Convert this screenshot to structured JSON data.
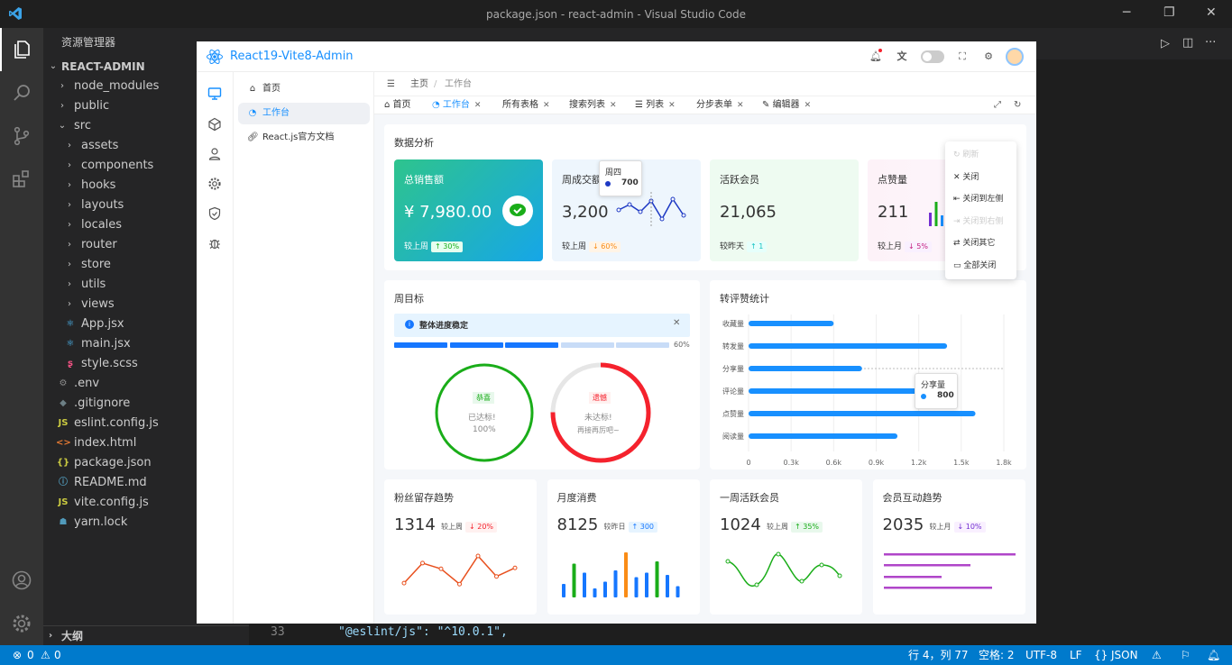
{
  "vscode": {
    "window_title": "package.json - react-admin - Visual Studio Code",
    "explorer_title": "资源管理器",
    "project": "REACT-ADMIN",
    "outline": "大纲",
    "code_line_no": "33",
    "code_text": "\"@eslint/js\": \"^10.0.1\",",
    "tree": [
      {
        "name": "node_modules",
        "type": "folder",
        "depth": 1
      },
      {
        "name": "public",
        "type": "folder",
        "depth": 1
      },
      {
        "name": "src",
        "type": "folder-open",
        "depth": 1
      },
      {
        "name": "assets",
        "type": "folder",
        "depth": 2
      },
      {
        "name": "components",
        "type": "folder",
        "depth": 2
      },
      {
        "name": "hooks",
        "type": "folder",
        "depth": 2
      },
      {
        "name": "layouts",
        "type": "folder",
        "depth": 2
      },
      {
        "name": "locales",
        "type": "folder",
        "depth": 2
      },
      {
        "name": "router",
        "type": "folder",
        "depth": 2
      },
      {
        "name": "store",
        "type": "folder",
        "depth": 2
      },
      {
        "name": "utils",
        "type": "folder",
        "depth": 2
      },
      {
        "name": "views",
        "type": "folder",
        "depth": 2
      },
      {
        "name": "App.jsx",
        "type": "react",
        "depth": 2
      },
      {
        "name": "main.jsx",
        "type": "react",
        "depth": 2
      },
      {
        "name": "style.scss",
        "type": "scss",
        "depth": 2
      },
      {
        "name": ".env",
        "type": "env",
        "depth": 1
      },
      {
        "name": ".gitignore",
        "type": "git",
        "depth": 1
      },
      {
        "name": "eslint.config.js",
        "type": "js",
        "depth": 1
      },
      {
        "name": "index.html",
        "type": "html",
        "depth": 1
      },
      {
        "name": "package.json",
        "type": "json",
        "depth": 1
      },
      {
        "name": "README.md",
        "type": "info",
        "depth": 1
      },
      {
        "name": "vite.config.js",
        "type": "js",
        "depth": 1
      },
      {
        "name": "yarn.lock",
        "type": "yarn",
        "depth": 1
      }
    ],
    "status": {
      "errors": "0",
      "warnings": "0",
      "position": "行 4，列 77",
      "spaces": "空格: 2",
      "encoding": "UTF-8",
      "eol": "LF",
      "language": "JSON"
    }
  },
  "app": {
    "brand": "React19-Vite8-Admin",
    "menu": [
      {
        "label": "首页",
        "icon": "home-icon"
      },
      {
        "label": "工作台",
        "icon": "dashboard-icon",
        "active": true
      },
      {
        "label": "React.js官方文档",
        "icon": "link-icon"
      }
    ],
    "breadcrumb": [
      "主页",
      "工作台"
    ],
    "tabs": [
      {
        "label": "首页",
        "closable": false
      },
      {
        "label": "工作台",
        "closable": true,
        "active": true
      },
      {
        "label": "所有表格",
        "closable": true
      },
      {
        "label": "搜索列表",
        "closable": true
      },
      {
        "label": "列表",
        "closable": true
      },
      {
        "label": "分步表单",
        "closable": true
      },
      {
        "label": "编辑器",
        "closable": true
      }
    ],
    "tab_menu": [
      "刷新",
      "关闭",
      "关闭到左侧",
      "关闭到右侧",
      "关闭其它",
      "全部关闭"
    ],
    "analysis": {
      "title": "数据分析",
      "cards": [
        {
          "label": "总销售额",
          "value": "¥ 7,980.00",
          "compare": "较上周",
          "trend": "↑ 30%"
        },
        {
          "label": "周成交额",
          "value": "3,200",
          "compare": "较上周",
          "trend": "↓ 60%"
        },
        {
          "label": "活跃会员",
          "value": "21,065",
          "compare": "较昨天",
          "trend": "↑ 1"
        },
        {
          "label": "点赞量",
          "value": "211",
          "compare": "较上月",
          "trend": "↓ 5%"
        }
      ],
      "tooltip": {
        "label": "周四",
        "value": "700"
      }
    },
    "weekly_goal": {
      "title": "周目标",
      "alert": "整体进度稳定",
      "progress_pct": "60%",
      "progress": 0.6,
      "ring1": {
        "tag": "恭喜",
        "line1": "已达标!",
        "line2": "100%"
      },
      "ring2": {
        "tag": "遗憾",
        "line1": "未达标!",
        "line2": "再接再厉吧~"
      }
    },
    "bottom": [
      {
        "title": "粉丝留存趋势",
        "value": "1314",
        "compare": "较上周",
        "trend": "↓ 20%"
      },
      {
        "title": "月度消费",
        "value": "8125",
        "compare": "较昨日",
        "trend": "↑ 300"
      },
      {
        "title": "一周活跃会员",
        "value": "1024",
        "compare": "较上周",
        "trend": "↑ 35%"
      },
      {
        "title": "会员互动趋势",
        "value": "2035",
        "compare": "较上月",
        "trend": "↓ 10%"
      }
    ]
  },
  "chart_data": [
    {
      "type": "bar",
      "title": "转评赞统计",
      "orientation": "horizontal",
      "categories": [
        "收藏量",
        "转发量",
        "分享量",
        "评论量",
        "点赞量",
        "阅读量"
      ],
      "values": [
        600,
        1400,
        800,
        1300,
        1600,
        1050
      ],
      "xlim": [
        0,
        1800
      ],
      "xticks": [
        "0",
        "0.3k",
        "0.6k",
        "0.9k",
        "1.2k",
        "1.5k",
        "1.8k"
      ],
      "tooltip": {
        "label": "分享量",
        "value": "800"
      }
    },
    {
      "type": "line",
      "title": "粉丝留存趋势",
      "values": [
        300,
        720,
        600,
        280,
        870,
        440,
        620
      ]
    }
  ]
}
